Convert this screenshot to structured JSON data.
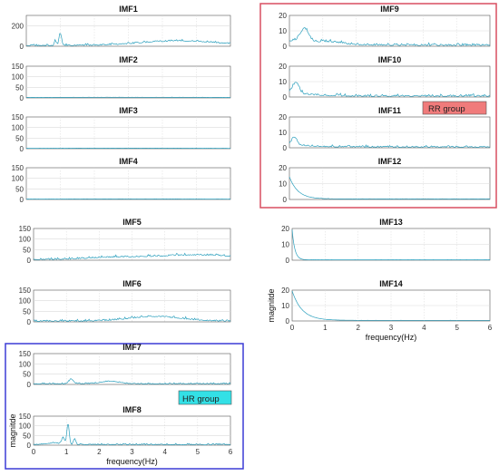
{
  "figure": {
    "rr_group_label": "RR group",
    "hr_group_label": "HR group",
    "colors": {
      "line": "#2a9fbd",
      "rr_box": "#d94f60",
      "rr_label_bg": "#f07b7b",
      "hr_box": "#3b3bd6",
      "hr_label_bg": "#33e0e6",
      "axis": "#555555",
      "grid": "#d9d9d9"
    }
  },
  "chart_data": [
    {
      "type": "line",
      "title": "IMF1",
      "ylim": [
        0,
        300
      ],
      "yticks": [
        "0",
        "200"
      ],
      "xlim": [
        0,
        6
      ],
      "xticks": [],
      "xlabel": "",
      "ylabel": "",
      "shape": {
        "peaks": [
          [
            1.0,
            0.05,
            120
          ],
          [
            0.85,
            0.04,
            50
          ]
        ],
        "bumps": [
          [
            4.5,
            1.6,
            45
          ]
        ],
        "noise": 22,
        "base": 4
      }
    },
    {
      "type": "line",
      "title": "IMF2",
      "ylim": [
        0,
        150
      ],
      "yticks": [
        "0",
        "50",
        "100",
        "150"
      ],
      "xlim": [
        0,
        6
      ],
      "xticks": [],
      "xlabel": "",
      "ylabel": "",
      "shape": {
        "peaks": [],
        "bumps": [
          [
            3.0,
            4.0,
            2
          ]
        ],
        "noise": 1.2,
        "base": 0.8
      }
    },
    {
      "type": "line",
      "title": "IMF3",
      "ylim": [
        0,
        150
      ],
      "yticks": [
        "0",
        "50",
        "100",
        "150"
      ],
      "xlim": [
        0,
        6
      ],
      "xticks": [],
      "xlabel": "",
      "ylabel": "",
      "shape": {
        "peaks": [],
        "bumps": [
          [
            3.0,
            4.0,
            1.5
          ]
        ],
        "noise": 1.0,
        "base": 0.6
      }
    },
    {
      "type": "line",
      "title": "IMF4",
      "ylim": [
        0,
        150
      ],
      "yticks": [
        "0",
        "50",
        "100",
        "150"
      ],
      "xlim": [
        0,
        6
      ],
      "xticks": [],
      "xlabel": "",
      "ylabel": "",
      "shape": {
        "peaks": [],
        "bumps": [
          [
            3.0,
            4.0,
            1.5
          ]
        ],
        "noise": 1.0,
        "base": 0.6
      }
    },
    {
      "type": "line",
      "title": "IMF5",
      "ylim": [
        0,
        150
      ],
      "yticks": [
        "0",
        "50",
        "100",
        "150"
      ],
      "xlim": [
        0,
        6
      ],
      "xticks": [],
      "xlabel": "",
      "ylabel": "",
      "shape": {
        "peaks": [],
        "bumps": [
          [
            5.0,
            1.6,
            22
          ],
          [
            2.5,
            1.2,
            10
          ]
        ],
        "noise": 12,
        "base": 2
      }
    },
    {
      "type": "line",
      "title": "IMF6",
      "ylim": [
        0,
        150
      ],
      "yticks": [
        "0",
        "50",
        "100",
        "150"
      ],
      "xlim": [
        0,
        6
      ],
      "xticks": [],
      "xlabel": "",
      "ylabel": "",
      "shape": {
        "peaks": [],
        "bumps": [
          [
            3.7,
            1.1,
            22
          ]
        ],
        "noise": 12,
        "base": 2
      }
    },
    {
      "type": "line",
      "title": "IMF7",
      "ylim": [
        0,
        150
      ],
      "yticks": [
        "0",
        "50",
        "100",
        "150"
      ],
      "xlim": [
        0,
        6
      ],
      "xticks": [],
      "xlabel": "",
      "ylabel": "",
      "shape": {
        "peaks": [
          [
            1.15,
            0.1,
            22
          ]
        ],
        "bumps": [
          [
            2.3,
            0.4,
            12
          ]
        ],
        "noise": 7,
        "base": 2
      }
    },
    {
      "type": "line",
      "title": "IMF8",
      "ylim": [
        0,
        150
      ],
      "yticks": [
        "0",
        "50",
        "100",
        "150"
      ],
      "xlim": [
        0,
        6
      ],
      "xticks": [
        "0",
        "1",
        "2",
        "3",
        "4",
        "5",
        "6"
      ],
      "xlabel": "frequency(Hz)",
      "ylabel": "magnitde",
      "shape": {
        "peaks": [
          [
            1.05,
            0.05,
            110
          ],
          [
            0.9,
            0.06,
            35
          ],
          [
            1.25,
            0.05,
            30
          ]
        ],
        "bumps": [
          [
            0.6,
            0.3,
            8
          ]
        ],
        "noise": 8,
        "base": 2
      }
    },
    {
      "type": "line",
      "title": "IMF9",
      "ylim": [
        0,
        20
      ],
      "yticks": [
        "0",
        "10",
        "20"
      ],
      "xlim": [
        0,
        6
      ],
      "xticks": [],
      "xlabel": "",
      "ylabel": "",
      "shape": {
        "peaks": [
          [
            0.45,
            0.18,
            9
          ]
        ],
        "bumps": [
          [
            1.2,
            0.5,
            1.5
          ]
        ],
        "noise": 2.0,
        "base": 0.4,
        "decay": [
          3,
          0.9
        ]
      }
    },
    {
      "type": "line",
      "title": "IMF10",
      "ylim": [
        0,
        20
      ],
      "yticks": [
        "0",
        "10",
        "20"
      ],
      "xlim": [
        0,
        6
      ],
      "xticks": [],
      "xlabel": "",
      "ylabel": "",
      "shape": {
        "peaks": [
          [
            0.2,
            0.12,
            7
          ]
        ],
        "bumps": [],
        "noise": 2.0,
        "base": 0.3,
        "decay": [
          3,
          0.6
        ]
      }
    },
    {
      "type": "line",
      "title": "IMF11",
      "ylim": [
        0,
        20
      ],
      "yticks": [
        "0",
        "10",
        "20"
      ],
      "xlim": [
        0,
        6
      ],
      "xticks": [],
      "xlabel": "",
      "ylabel": "",
      "shape": {
        "peaks": [
          [
            0.15,
            0.1,
            5
          ]
        ],
        "bumps": [],
        "noise": 1.5,
        "base": 0.3,
        "decay": [
          2,
          0.6
        ]
      }
    },
    {
      "type": "line",
      "title": "IMF12",
      "ylim": [
        0,
        20
      ],
      "yticks": [
        "0",
        "10",
        "20"
      ],
      "xlim": [
        0,
        6
      ],
      "xticks": [],
      "xlabel": "",
      "ylabel": "",
      "shape": {
        "peaks": [],
        "bumps": [],
        "noise": 0.2,
        "base": 0.3,
        "decay": [
          14,
          0.25
        ]
      }
    },
    {
      "type": "line",
      "title": "IMF13",
      "ylim": [
        0,
        20
      ],
      "yticks": [
        "0",
        "10",
        "20"
      ],
      "xlim": [
        0,
        6
      ],
      "xticks": [],
      "xlabel": "",
      "ylabel": "",
      "shape": {
        "peaks": [],
        "bumps": [],
        "noise": 0.1,
        "base": 0.2,
        "decay": [
          19,
          0.08
        ]
      }
    },
    {
      "type": "line",
      "title": "IMF14",
      "ylim": [
        0,
        20
      ],
      "yticks": [
        "0",
        "10",
        "20"
      ],
      "xlim": [
        0,
        6
      ],
      "xticks": [
        "0",
        "1",
        "2",
        "3",
        "4",
        "5",
        "6"
      ],
      "xlabel": "frequency(Hz)",
      "ylabel": "magnitde",
      "shape": {
        "peaks": [],
        "bumps": [],
        "noise": 0.05,
        "base": 0.4,
        "decay": [
          19,
          0.3
        ]
      }
    }
  ]
}
